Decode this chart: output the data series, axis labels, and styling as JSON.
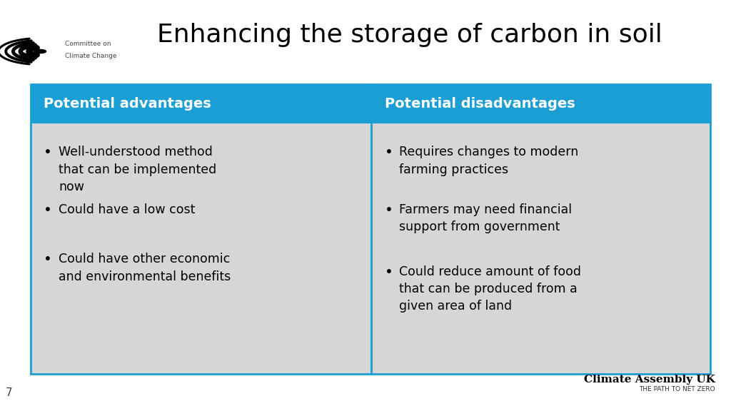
{
  "title": "Enhancing the storage of carbon in soil",
  "title_fontsize": 26,
  "title_color": "#000000",
  "background_color": "#ffffff",
  "header_bg_color": "#1b9ed4",
  "header_text_color": "#ffffff",
  "header_fontsize": 14,
  "cell_bg_color": "#d6d6d6",
  "cell_text_color": "#000000",
  "cell_fontsize": 12.5,
  "border_color": "#1b9ed4",
  "header_left": "Potential advantages",
  "header_right": "Potential disadvantages",
  "advantages": [
    "Well-understood method\nthat can be implemented\nnow",
    "Could have a low cost",
    "Could have other economic\nand environmental benefits"
  ],
  "disadvantages": [
    "Requires changes to modern\nfarming practices",
    "Farmers may need financial\nsupport from government",
    "Could reduce amount of food\nthat can be produced from a\ngiven area of land"
  ],
  "page_number": "7",
  "footer_main": "Climate Assembly UK",
  "footer_sub": "THE PATH TO NET ZERO",
  "logo_text_line1": "Committee on",
  "logo_text_line2": "Climate Change"
}
